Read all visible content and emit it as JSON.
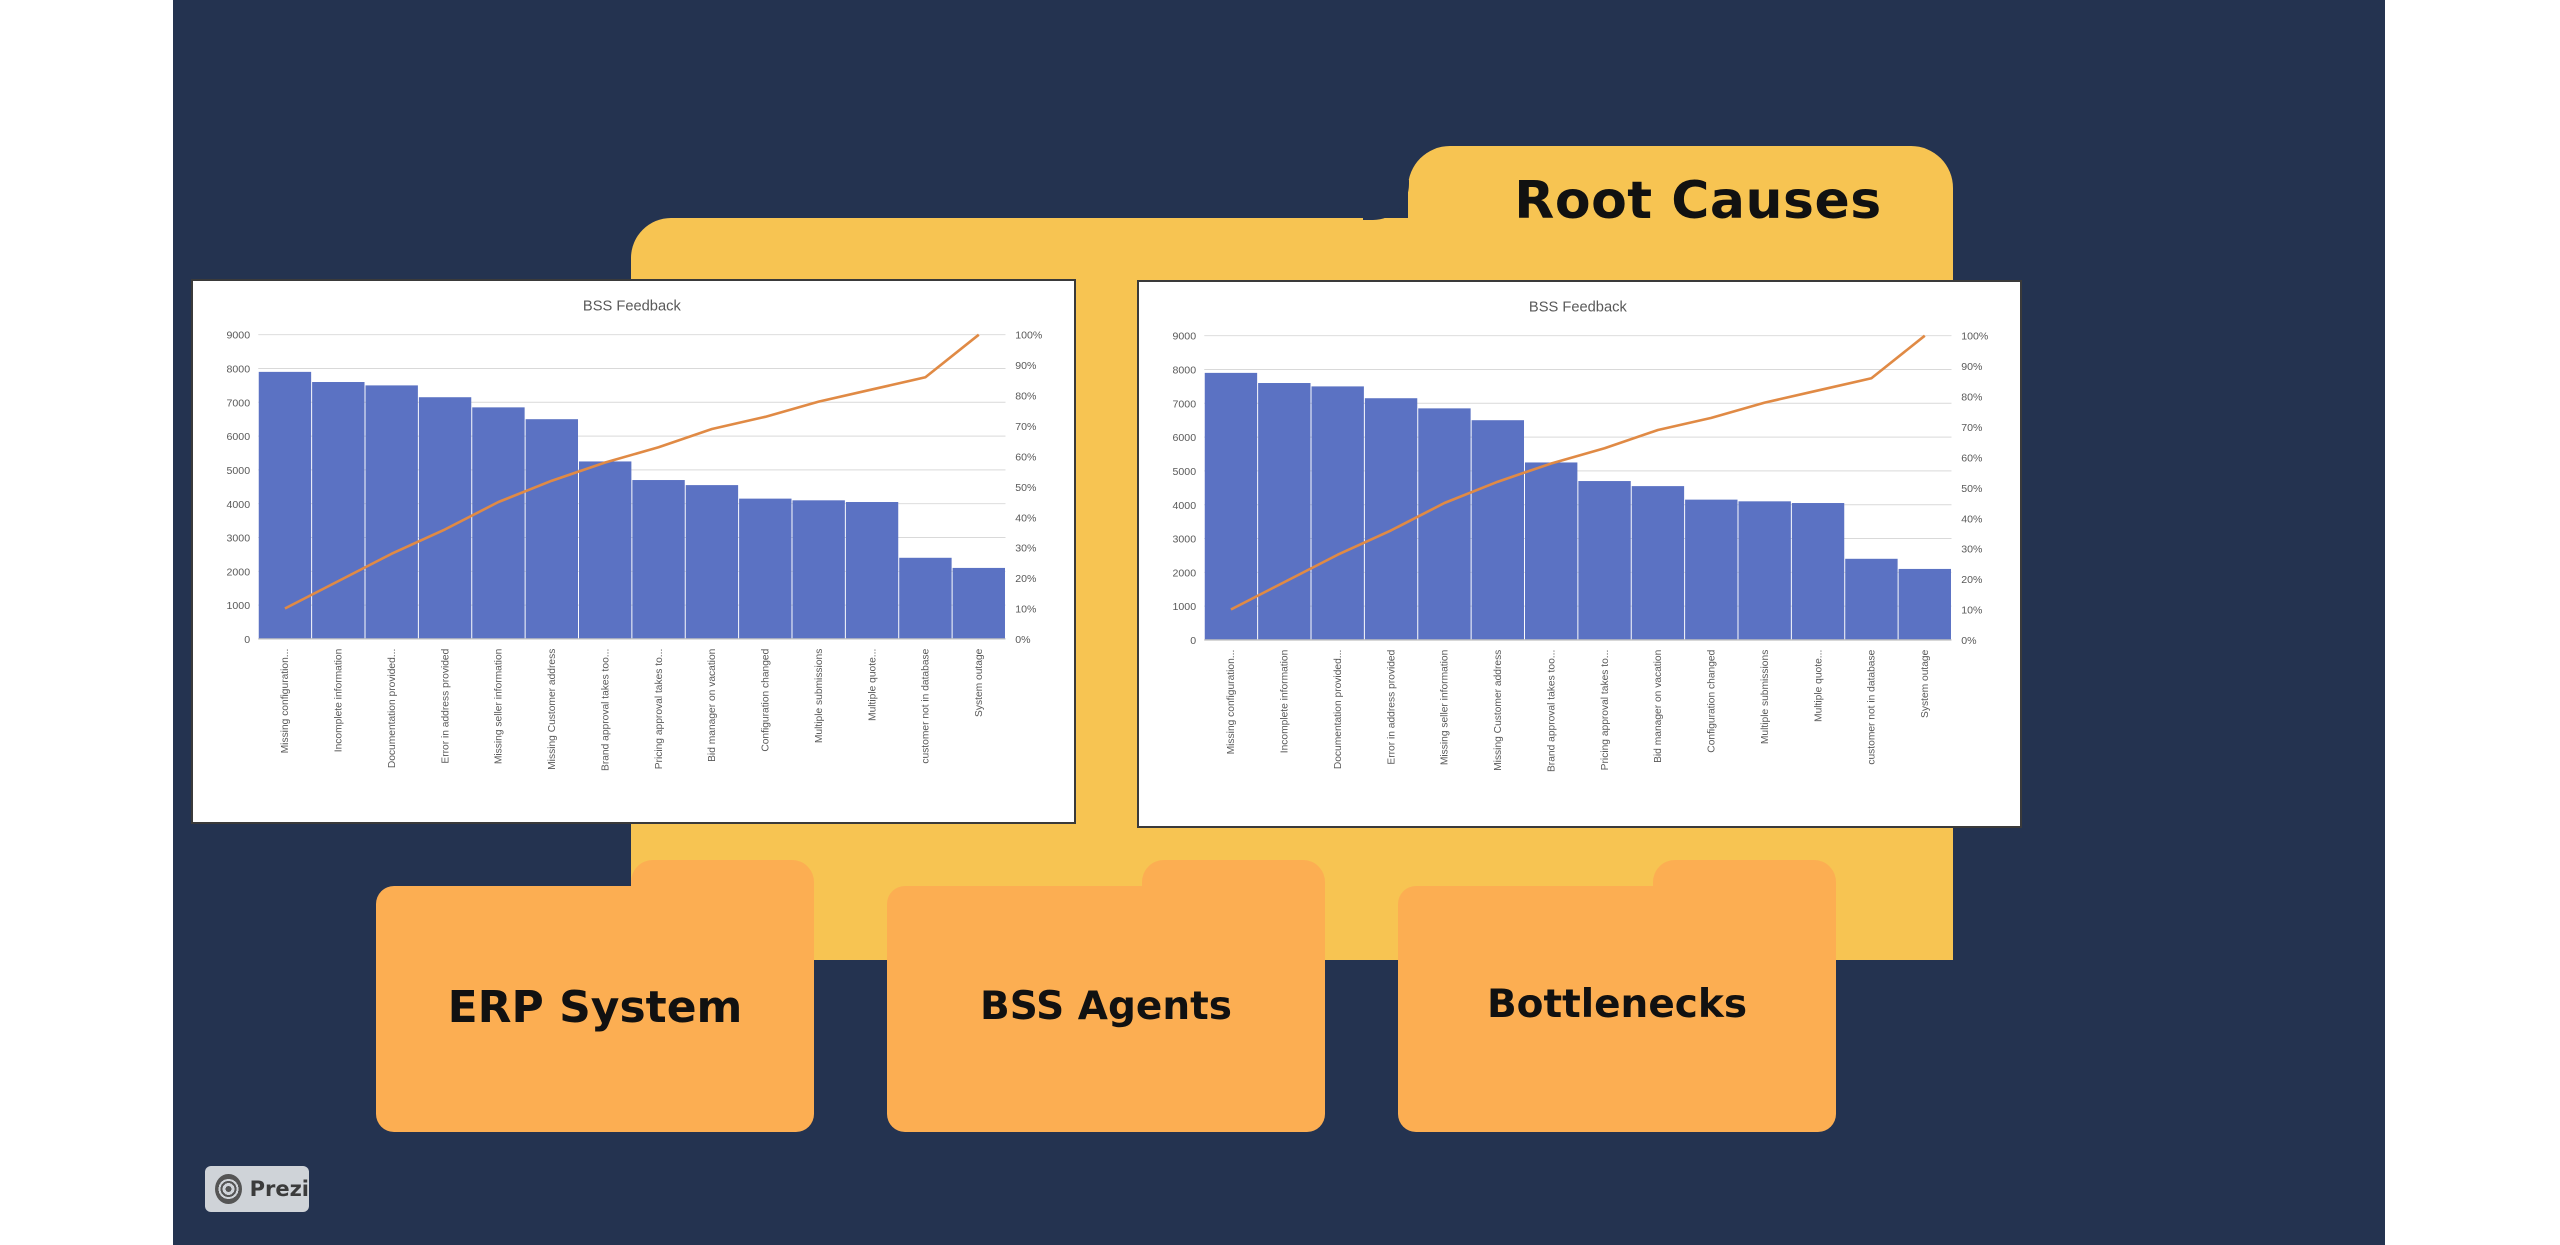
{
  "slide": {
    "title": "Root Causes",
    "colors": {
      "background": "#243350",
      "folder": "#f7c452",
      "subfolder": "#fcae52",
      "bar": "#5b72c3",
      "line": "#e08a45"
    }
  },
  "sub_folders": [
    {
      "label": "ERP System"
    },
    {
      "label": "BSS Agents"
    },
    {
      "label": "Bottlenecks"
    }
  ],
  "badge": {
    "label": "Prezi",
    "icon": "prezi-logo-icon"
  },
  "chart_data": [
    {
      "type": "bar",
      "title": "BSS Feedback",
      "categories": [
        "Missing configuration...",
        "Incomplete information",
        "Documentation provided...",
        "Error in address provided",
        "Missing seller information",
        "Missing Customer address",
        "Brand approval takes too...",
        "Pricing approval takes to...",
        "Bid manager on vacation",
        "Configuration changed",
        "Multiple submissions",
        "Multiple quote...",
        "customer not in database",
        "System outage"
      ],
      "series": [
        {
          "type": "bar",
          "values": [
            7900,
            7600,
            7500,
            7150,
            6850,
            6500,
            5250,
            4700,
            4550,
            4150,
            4100,
            4050,
            2400,
            2100
          ]
        },
        {
          "type": "line",
          "axis": "right",
          "values": [
            10,
            19,
            28,
            36,
            45,
            52,
            58,
            63,
            69,
            73,
            78,
            82,
            86,
            100
          ]
        }
      ],
      "ylim": [
        0,
        9000
      ],
      "yticks": [
        "0",
        "1000",
        "2000",
        "3000",
        "4000",
        "5000",
        "6000",
        "7000",
        "8000",
        "9000"
      ],
      "y2lim": [
        0,
        100
      ],
      "y2ticks": [
        "0%",
        "10%",
        "20%",
        "30%",
        "40%",
        "50%",
        "60%",
        "70%",
        "80%",
        "90%",
        "100%"
      ],
      "grid": true
    },
    {
      "type": "bar",
      "title": "BSS Feedback",
      "categories": [
        "Missing configuration...",
        "Incomplete information",
        "Documentation provided...",
        "Error in address provided",
        "Missing seller information",
        "Missing Customer address",
        "Brand approval takes too...",
        "Pricing approval takes to...",
        "Bid manager on vacation",
        "Configuration changed",
        "Multiple submissions",
        "Multiple quote...",
        "customer not in database",
        "System outage"
      ],
      "series": [
        {
          "type": "bar",
          "values": [
            7900,
            7600,
            7500,
            7150,
            6850,
            6500,
            5250,
            4700,
            4550,
            4150,
            4100,
            4050,
            2400,
            2100
          ]
        },
        {
          "type": "line",
          "axis": "right",
          "values": [
            10,
            19,
            28,
            36,
            45,
            52,
            58,
            63,
            69,
            73,
            78,
            82,
            86,
            100
          ]
        }
      ],
      "ylim": [
        0,
        9000
      ],
      "yticks": [
        "0",
        "1000",
        "2000",
        "3000",
        "4000",
        "5000",
        "6000",
        "7000",
        "8000",
        "9000"
      ],
      "y2lim": [
        0,
        100
      ],
      "y2ticks": [
        "0%",
        "10%",
        "20%",
        "30%",
        "40%",
        "50%",
        "60%",
        "70%",
        "80%",
        "90%",
        "100%"
      ],
      "grid": true
    }
  ]
}
